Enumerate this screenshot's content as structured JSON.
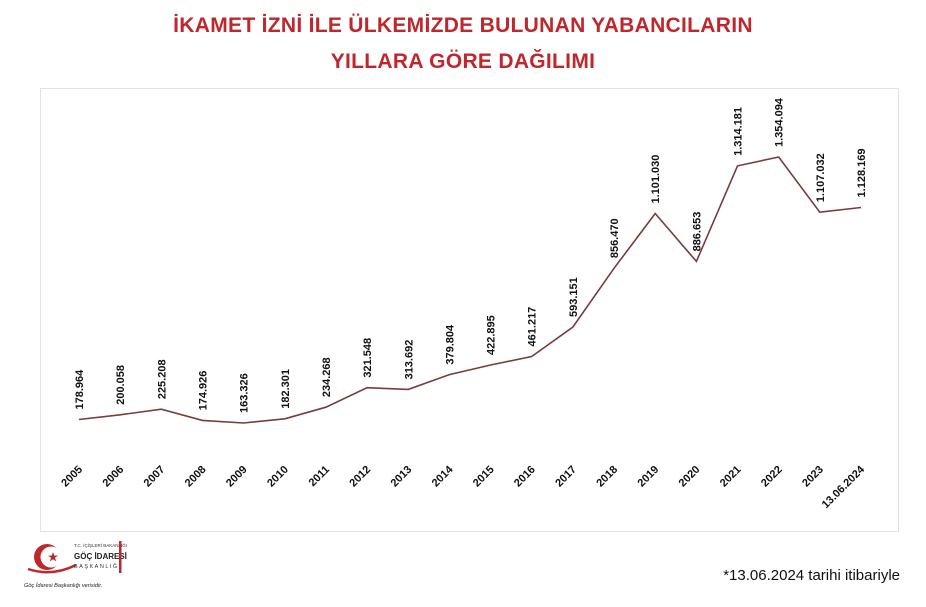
{
  "header": {
    "title_line1": "İKAMET İZNİ İLE ÜLKEMİZDE BULUNAN YABANCILARIN",
    "title_line2": "YILLARA GÖRE DAĞILIMI"
  },
  "logo": {
    "top_text": "T.C. İÇİŞLERİ BAKANLIĞI",
    "name": "GÖÇ İDARESİ",
    "sub": "BAŞKANLIĞI",
    "caption": "Göç İdaresi Başkanlığı verisidir."
  },
  "footnote": "*13.06.2024 tarihi itibariyle",
  "colors": {
    "title": "#c0272d",
    "line": "#7a3b3b",
    "text": "#111111"
  },
  "chart_data": {
    "type": "line",
    "title": "İKAMET İZNİ İLE ÜLKEMİZDE BULUNAN YABANCILARIN YILLARA GÖRE DAĞILIMI",
    "categories": [
      "2005",
      "2006",
      "2007",
      "2008",
      "2009",
      "2010",
      "2011",
      "2012",
      "2013",
      "2014",
      "2015",
      "2016",
      "2017",
      "2018",
      "2019",
      "2020",
      "2021",
      "2022",
      "2023",
      "13.06.2024"
    ],
    "series": [
      {
        "values": [
          178964,
          200058,
          225208,
          174926,
          163326,
          182301,
          234268,
          321548,
          313692,
          379804,
          422895,
          461217,
          593151,
          856470,
          1101030,
          886653,
          1314181,
          1354094,
          1107032,
          1128169
        ],
        "labels": [
          "178.964",
          "200.058",
          "225.208",
          "174.926",
          "163.326",
          "182.301",
          "234.268",
          "321.548",
          "313.692",
          "379.804",
          "422.895",
          "461.217",
          "593.151",
          "856.470",
          "1.101.030",
          "886.653",
          "1.314.181",
          "1.354.094",
          "1.107.032",
          "1.128.169"
        ]
      }
    ],
    "xlabel": "",
    "ylabel": "",
    "grid": false,
    "legend": "none"
  }
}
